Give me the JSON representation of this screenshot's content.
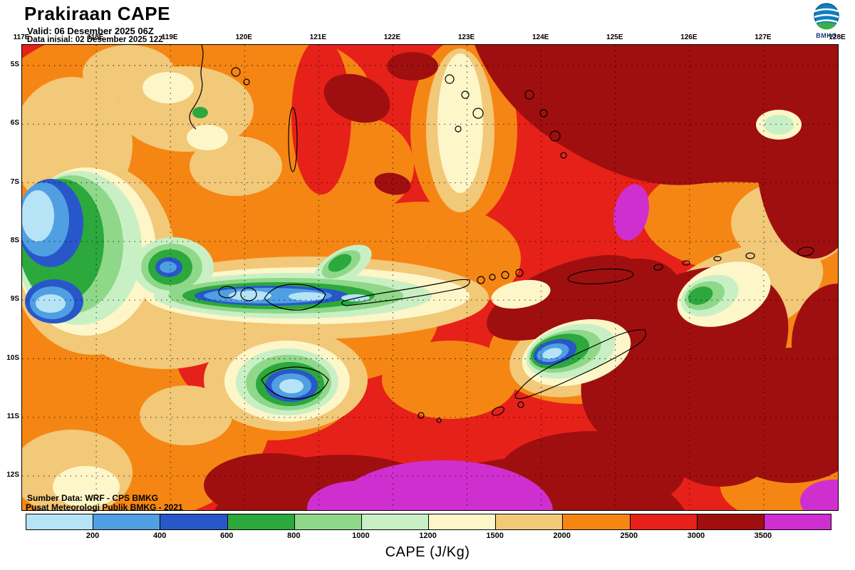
{
  "header": {
    "title": "Prakiraan CAPE",
    "valid_line": "Valid: 06 Desember 2025 06Z",
    "init_line": "Data inisial: 02 Desember 2025 12Z"
  },
  "logo": {
    "label": "BMKG"
  },
  "map": {
    "lon_labels": [
      "117E",
      "118E",
      "119E",
      "120E",
      "121E",
      "122E",
      "123E",
      "124E",
      "125E",
      "126E",
      "127E",
      "128E"
    ],
    "lat_labels": [
      "5S",
      "6S",
      "7S",
      "8S",
      "9S",
      "10S",
      "11S",
      "12S"
    ],
    "source_line1": "Sumber Data: WRF - CPS BMKG",
    "source_line2": "Pusat Meteorologi Publik BMKG -  2021"
  },
  "colorbar": {
    "tick_values": [
      "200",
      "400",
      "600",
      "800",
      "1000",
      "1200",
      "1500",
      "2000",
      "2500",
      "3000",
      "3500"
    ],
    "colors": [
      "#b6e3f6",
      "#509fe3",
      "#2857c9",
      "#2ca83c",
      "#8fd88a",
      "#c9f0c4",
      "#fdf6c8",
      "#f2c879",
      "#f58614",
      "#e62119",
      "#a00f0f",
      "#d02fd0"
    ],
    "caption": "CAPE (J/Kg)"
  },
  "chart_data": {
    "type": "heatmap",
    "title": "Prakiraan CAPE",
    "units": "J/Kg",
    "levels": [
      200,
      400,
      600,
      800,
      1000,
      1200,
      1500,
      2000,
      2500,
      3000,
      3500
    ],
    "lon_range": [
      117,
      128
    ],
    "lat_range": [
      -12.5,
      -4.7
    ],
    "legend_position": "bottom"
  }
}
